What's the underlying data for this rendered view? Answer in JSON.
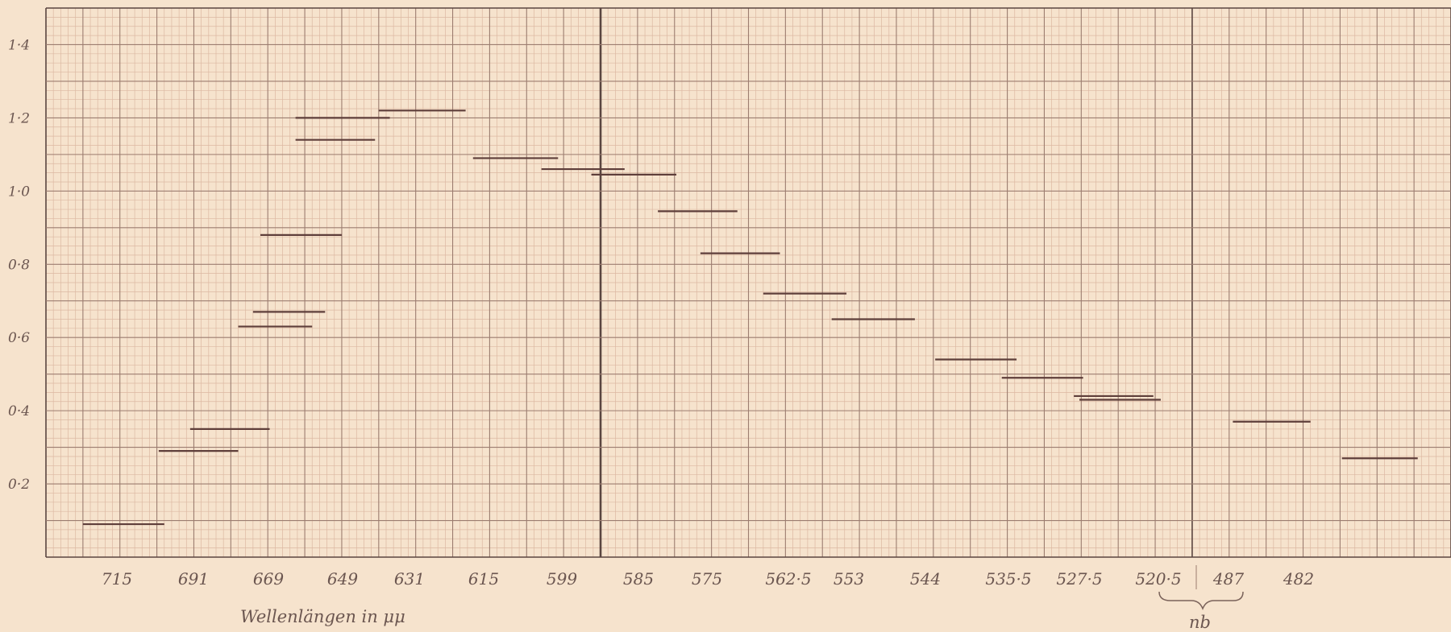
{
  "chart_data": {
    "type": "bar",
    "xlabel": "Wellenlängen in μμ",
    "ylim": [
      0,
      1.5
    ],
    "y_ticks": [
      "0·2",
      "0·4",
      "0·6",
      "0·8",
      "1·0",
      "1·2",
      "1·4"
    ],
    "y_tick_values": [
      0.2,
      0.4,
      0.6,
      0.8,
      1.0,
      1.2,
      1.4
    ],
    "x_ticks": [
      "715",
      "691",
      "669",
      "649",
      "631",
      "615",
      "599",
      "585",
      "575",
      "562·5",
      "553",
      "544",
      "535·5",
      "527·5",
      "520·5",
      "487",
      "482"
    ],
    "bracket_label": "nb",
    "grid": true,
    "series": [
      {
        "values": [
          {
            "x_from": 1.0,
            "x_to": 3.2,
            "y": 0.09
          },
          {
            "x_from": 3.05,
            "x_to": 5.2,
            "y": 0.29
          },
          {
            "x_from": 3.9,
            "x_to": 6.05,
            "y": 0.35
          },
          {
            "x_from": 5.2,
            "x_to": 7.2,
            "y": 0.63
          },
          {
            "x_from": 5.6,
            "x_to": 7.55,
            "y": 0.67
          },
          {
            "x_from": 5.8,
            "x_to": 8.0,
            "y": 0.88
          },
          {
            "x_from": 6.75,
            "x_to": 8.9,
            "y": 1.14
          },
          {
            "x_from": 6.75,
            "x_to": 9.3,
            "y": 1.2
          },
          {
            "x_from": 9.0,
            "x_to": 11.35,
            "y": 1.22
          },
          {
            "x_from": 11.55,
            "x_to": 13.85,
            "y": 1.09
          },
          {
            "x_from": 13.4,
            "x_to": 15.65,
            "y": 1.06
          },
          {
            "x_from": 14.75,
            "x_to": 17.05,
            "y": 1.045
          },
          {
            "x_from": 16.55,
            "x_to": 18.7,
            "y": 0.945
          },
          {
            "x_from": 17.7,
            "x_to": 19.85,
            "y": 0.83
          },
          {
            "x_from": 19.4,
            "x_to": 21.65,
            "y": 0.72
          },
          {
            "x_from": 21.25,
            "x_to": 23.5,
            "y": 0.65
          },
          {
            "x_from": 24.05,
            "x_to": 26.25,
            "y": 0.54
          },
          {
            "x_from": 25.85,
            "x_to": 28.05,
            "y": 0.49
          },
          {
            "x_from": 27.8,
            "x_to": 29.95,
            "y": 0.44
          },
          {
            "x_from": 27.95,
            "x_to": 30.15,
            "y": 0.43
          },
          {
            "x_from": 32.1,
            "x_to": 34.2,
            "y": 0.37
          },
          {
            "x_from": 35.05,
            "x_to": 37.1,
            "y": 0.27
          }
        ]
      }
    ]
  }
}
